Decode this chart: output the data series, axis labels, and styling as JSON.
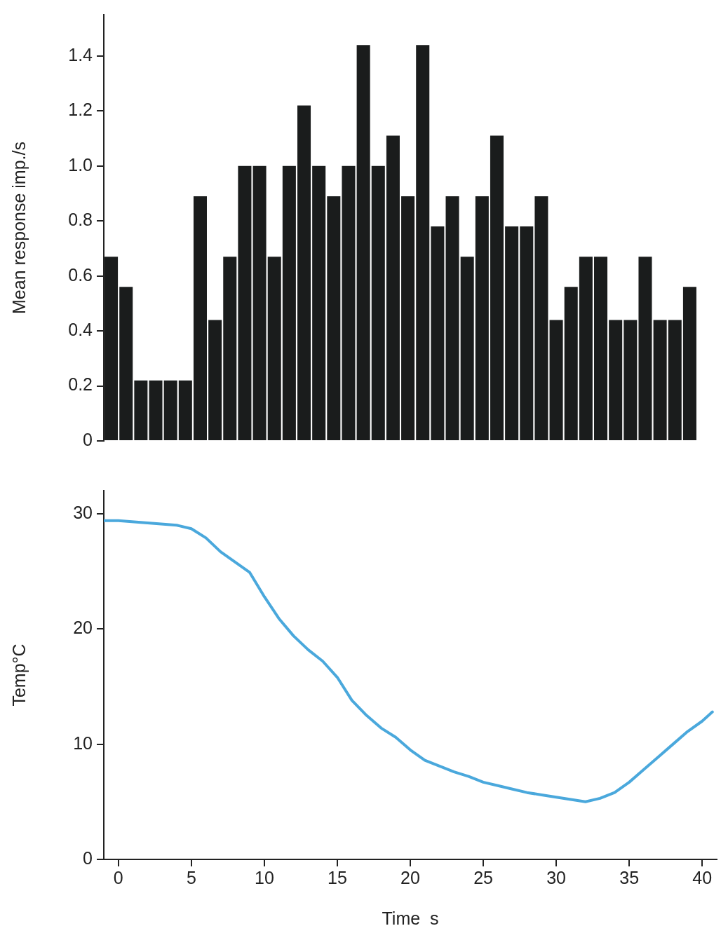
{
  "chart_data": [
    {
      "type": "bar",
      "ylabel": "Mean response imp./s",
      "color": "#1a1c1c",
      "categories": [
        null,
        null,
        null,
        null,
        null,
        null,
        null,
        null,
        null,
        null,
        null,
        null,
        null,
        null,
        null,
        null,
        null,
        null,
        null,
        null,
        null,
        null,
        null,
        null,
        null,
        null,
        null,
        null,
        null,
        null,
        null,
        null,
        null,
        null,
        null,
        null,
        null,
        null,
        null,
        null
      ],
      "values": [
        0.67,
        0.56,
        0.22,
        0.22,
        0.22,
        0.22,
        0.89,
        0.44,
        0.67,
        1.0,
        1.0,
        0.67,
        1.0,
        1.22,
        1.0,
        0.89,
        1.0,
        1.44,
        1.0,
        1.11,
        0.89,
        1.44,
        0.78,
        0.89,
        0.67,
        0.89,
        1.11,
        0.78,
        0.78,
        0.89,
        0.44,
        0.56,
        0.67,
        0.67,
        0.44,
        0.44,
        0.67,
        0.44,
        0.44,
        0.56
      ],
      "ylim": [
        0,
        1.55
      ],
      "yticks": [
        {
          "value": 0,
          "label": "0"
        },
        {
          "value": 0.2,
          "label": "0.2"
        },
        {
          "value": 0.4,
          "label": "0.4"
        },
        {
          "value": 0.6,
          "label": "0.6"
        },
        {
          "value": 0.8,
          "label": "0.8"
        },
        {
          "value": 1.0,
          "label": "1.0"
        },
        {
          "value": 1.2,
          "label": "1.2"
        },
        {
          "value": 1.4,
          "label": "1.4"
        }
      ],
      "tick_labels": "y",
      "grid": false,
      "legend": false
    },
    {
      "type": "line",
      "xlabel": "Time  s",
      "ylabel": "Temp°C",
      "color": "#4aa8dc",
      "x": [
        -1,
        0,
        2,
        4,
        5,
        6,
        7,
        8,
        9,
        10,
        11,
        12,
        13,
        14,
        15,
        16,
        17,
        18,
        19,
        20,
        21,
        22,
        23,
        24,
        25,
        26,
        27,
        28,
        29,
        30,
        31,
        32,
        33,
        34,
        35,
        36,
        37,
        38,
        39,
        40,
        40.7
      ],
      "values": [
        29.4,
        29.4,
        29.2,
        29.0,
        28.7,
        27.9,
        26.7,
        25.8,
        24.9,
        22.8,
        20.9,
        19.4,
        18.2,
        17.2,
        15.8,
        13.8,
        12.5,
        11.4,
        10.6,
        9.5,
        8.6,
        8.1,
        7.6,
        7.2,
        6.7,
        6.4,
        6.1,
        5.8,
        5.6,
        5.4,
        5.2,
        5.0,
        5.3,
        5.8,
        6.7,
        7.8,
        8.9,
        10.0,
        11.1,
        12.0,
        12.8
      ],
      "xlim": [
        -1,
        41
      ],
      "xticks": [
        0,
        5,
        10,
        15,
        20,
        25,
        30,
        35,
        40
      ],
      "ylim": [
        0,
        32
      ],
      "yticks": [
        0,
        10,
        20,
        30
      ],
      "marker": "none",
      "line_style": "solid",
      "grid": false,
      "legend": false
    }
  ]
}
